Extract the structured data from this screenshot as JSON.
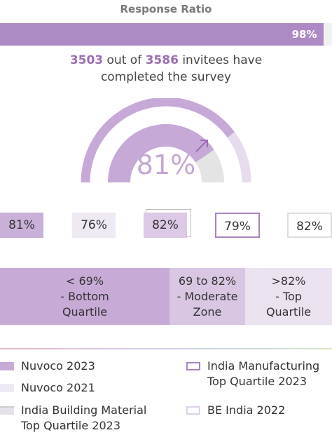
{
  "title": "Response Ratio",
  "response_bar": {
    "value": 98,
    "value_label": "98%"
  },
  "summary": {
    "respondents": "3503",
    "middle": "out of",
    "invitees": "3586",
    "end1": "invitees have",
    "end2": "completed the survey"
  },
  "gauge": {
    "value": 81,
    "value_label": "81%"
  },
  "scores": [
    "81%",
    "76%",
    "82%",
    "79%",
    "82%"
  ],
  "bands": [
    [
      "< 69%",
      "- Bottom",
      "Quartile"
    ],
    [
      "69 to 82%",
      "- Moderate",
      "Zone"
    ],
    [
      ">82%",
      "- Top",
      "Quartile"
    ]
  ],
  "legend": [
    "Nuvoco 2023",
    "Nuvoco 2021",
    [
      "India Building Material",
      "Top Quartile 2023"
    ],
    [
      "India Manufacturing",
      "Top Quartile 2023"
    ],
    "BE India 2022"
  ]
}
